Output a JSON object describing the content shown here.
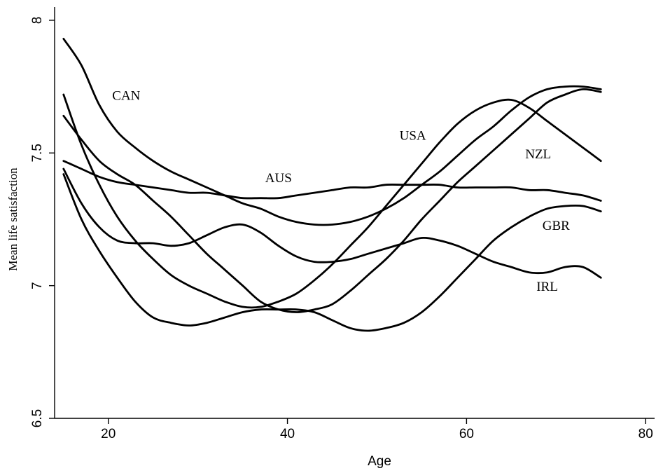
{
  "chart_data": {
    "type": "line",
    "title": "",
    "xlabel": "Age",
    "ylabel": "Mean life satisfaction",
    "xlim": [
      14,
      81
    ],
    "ylim": [
      6.5,
      8.05
    ],
    "xticks": [
      20,
      40,
      60,
      80
    ],
    "yticks": [
      6.5,
      7,
      7.5,
      8
    ],
    "xtick_labels": [
      "20",
      "40",
      "60",
      "80"
    ],
    "ytick_labels": [
      "6.5",
      "7",
      "7.5",
      "8"
    ],
    "grid": false,
    "legend": "none",
    "series": [
      {
        "name": "CAN",
        "label_at": [
          22,
          7.7
        ],
        "points": [
          [
            15,
            7.93
          ],
          [
            17,
            7.83
          ],
          [
            19,
            7.68
          ],
          [
            21,
            7.58
          ],
          [
            23,
            7.52
          ],
          [
            25,
            7.47
          ],
          [
            27,
            7.43
          ],
          [
            29,
            7.4
          ],
          [
            31,
            7.37
          ],
          [
            33,
            7.34
          ],
          [
            35,
            7.31
          ],
          [
            37,
            7.29
          ],
          [
            39,
            7.26
          ],
          [
            41,
            7.24
          ],
          [
            43,
            7.23
          ],
          [
            45,
            7.23
          ],
          [
            47,
            7.24
          ],
          [
            49,
            7.26
          ],
          [
            51,
            7.29
          ],
          [
            53,
            7.33
          ],
          [
            55,
            7.38
          ],
          [
            57,
            7.43
          ],
          [
            59,
            7.49
          ],
          [
            61,
            7.55
          ],
          [
            63,
            7.6
          ],
          [
            65,
            7.66
          ],
          [
            67,
            7.71
          ],
          [
            69,
            7.74
          ],
          [
            71,
            7.75
          ],
          [
            73,
            7.75
          ],
          [
            75,
            7.74
          ]
        ]
      },
      {
        "name": "AUS",
        "label_at": [
          39,
          7.39
        ],
        "points": [
          [
            15,
            7.47
          ],
          [
            17,
            7.44
          ],
          [
            19,
            7.41
          ],
          [
            21,
            7.39
          ],
          [
            23,
            7.38
          ],
          [
            25,
            7.37
          ],
          [
            27,
            7.36
          ],
          [
            29,
            7.35
          ],
          [
            31,
            7.35
          ],
          [
            33,
            7.34
          ],
          [
            35,
            7.33
          ],
          [
            37,
            7.33
          ],
          [
            39,
            7.33
          ],
          [
            41,
            7.34
          ],
          [
            43,
            7.35
          ],
          [
            45,
            7.36
          ],
          [
            47,
            7.37
          ],
          [
            49,
            7.37
          ],
          [
            51,
            7.38
          ],
          [
            53,
            7.38
          ],
          [
            55,
            7.38
          ],
          [
            57,
            7.38
          ],
          [
            59,
            7.37
          ],
          [
            61,
            7.37
          ],
          [
            63,
            7.37
          ],
          [
            65,
            7.37
          ],
          [
            67,
            7.36
          ],
          [
            69,
            7.36
          ],
          [
            71,
            7.35
          ],
          [
            73,
            7.34
          ],
          [
            75,
            7.32
          ]
        ]
      },
      {
        "name": "USA",
        "label_at": [
          54,
          7.55
        ],
        "points": [
          [
            15,
            7.72
          ],
          [
            17,
            7.53
          ],
          [
            19,
            7.38
          ],
          [
            21,
            7.26
          ],
          [
            23,
            7.17
          ],
          [
            25,
            7.1
          ],
          [
            27,
            7.04
          ],
          [
            29,
            7.0
          ],
          [
            31,
            6.97
          ],
          [
            33,
            6.94
          ],
          [
            35,
            6.92
          ],
          [
            37,
            6.92
          ],
          [
            39,
            6.94
          ],
          [
            41,
            6.97
          ],
          [
            43,
            7.02
          ],
          [
            45,
            7.08
          ],
          [
            47,
            7.15
          ],
          [
            49,
            7.22
          ],
          [
            51,
            7.3
          ],
          [
            53,
            7.38
          ],
          [
            55,
            7.46
          ],
          [
            57,
            7.54
          ],
          [
            59,
            7.61
          ],
          [
            61,
            7.66
          ],
          [
            63,
            7.69
          ],
          [
            65,
            7.7
          ],
          [
            67,
            7.67
          ],
          [
            69,
            7.62
          ],
          [
            71,
            7.57
          ],
          [
            73,
            7.52
          ],
          [
            75,
            7.47
          ]
        ]
      },
      {
        "name": "NZL",
        "label_at": [
          68,
          7.48
        ],
        "points": [
          [
            15,
            7.64
          ],
          [
            17,
            7.55
          ],
          [
            19,
            7.47
          ],
          [
            21,
            7.42
          ],
          [
            23,
            7.38
          ],
          [
            25,
            7.32
          ],
          [
            27,
            7.26
          ],
          [
            29,
            7.19
          ],
          [
            31,
            7.12
          ],
          [
            33,
            7.06
          ],
          [
            35,
            7.0
          ],
          [
            37,
            6.94
          ],
          [
            39,
            6.91
          ],
          [
            41,
            6.9
          ],
          [
            43,
            6.91
          ],
          [
            45,
            6.93
          ],
          [
            47,
            6.98
          ],
          [
            49,
            7.04
          ],
          [
            51,
            7.1
          ],
          [
            53,
            7.17
          ],
          [
            55,
            7.25
          ],
          [
            57,
            7.32
          ],
          [
            59,
            7.39
          ],
          [
            61,
            7.45
          ],
          [
            63,
            7.51
          ],
          [
            65,
            7.57
          ],
          [
            67,
            7.63
          ],
          [
            69,
            7.69
          ],
          [
            71,
            7.72
          ],
          [
            73,
            7.74
          ],
          [
            75,
            7.73
          ]
        ]
      },
      {
        "name": "GBR",
        "label_at": [
          70,
          7.21
        ],
        "points": [
          [
            15,
            7.42
          ],
          [
            17,
            7.25
          ],
          [
            19,
            7.13
          ],
          [
            21,
            7.03
          ],
          [
            23,
            6.94
          ],
          [
            25,
            6.88
          ],
          [
            27,
            6.86
          ],
          [
            29,
            6.85
          ],
          [
            31,
            6.86
          ],
          [
            33,
            6.88
          ],
          [
            35,
            6.9
          ],
          [
            37,
            6.91
          ],
          [
            39,
            6.91
          ],
          [
            41,
            6.91
          ],
          [
            43,
            6.9
          ],
          [
            45,
            6.87
          ],
          [
            47,
            6.84
          ],
          [
            49,
            6.83
          ],
          [
            51,
            6.84
          ],
          [
            53,
            6.86
          ],
          [
            55,
            6.9
          ],
          [
            57,
            6.96
          ],
          [
            59,
            7.03
          ],
          [
            61,
            7.1
          ],
          [
            63,
            7.17
          ],
          [
            65,
            7.22
          ],
          [
            67,
            7.26
          ],
          [
            69,
            7.29
          ],
          [
            71,
            7.3
          ],
          [
            73,
            7.3
          ],
          [
            75,
            7.28
          ]
        ]
      },
      {
        "name": "IRL",
        "label_at": [
          69,
          6.98
        ],
        "points": [
          [
            15,
            7.44
          ],
          [
            17,
            7.31
          ],
          [
            19,
            7.22
          ],
          [
            21,
            7.17
          ],
          [
            23,
            7.16
          ],
          [
            25,
            7.16
          ],
          [
            27,
            7.15
          ],
          [
            29,
            7.16
          ],
          [
            31,
            7.19
          ],
          [
            33,
            7.22
          ],
          [
            35,
            7.23
          ],
          [
            37,
            7.2
          ],
          [
            39,
            7.15
          ],
          [
            41,
            7.11
          ],
          [
            43,
            7.09
          ],
          [
            45,
            7.09
          ],
          [
            47,
            7.1
          ],
          [
            49,
            7.12
          ],
          [
            51,
            7.14
          ],
          [
            53,
            7.16
          ],
          [
            55,
            7.18
          ],
          [
            57,
            7.17
          ],
          [
            59,
            7.15
          ],
          [
            61,
            7.12
          ],
          [
            63,
            7.09
          ],
          [
            65,
            7.07
          ],
          [
            67,
            7.05
          ],
          [
            69,
            7.05
          ],
          [
            71,
            7.07
          ],
          [
            73,
            7.07
          ],
          [
            75,
            7.03
          ]
        ]
      }
    ]
  }
}
